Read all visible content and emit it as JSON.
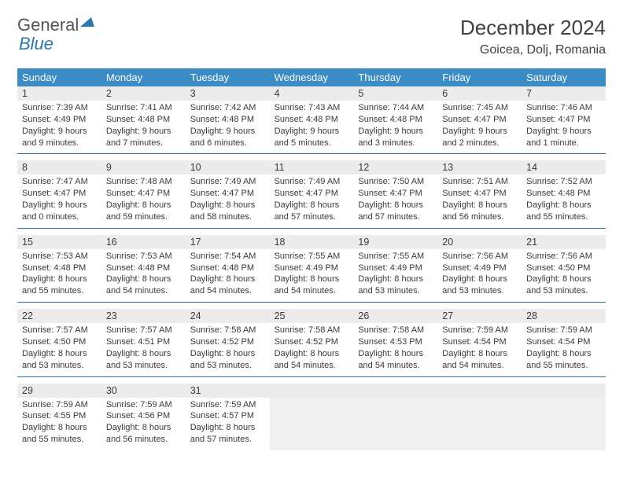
{
  "logo": {
    "word1": "General",
    "word2": "Blue"
  },
  "title": "December 2024",
  "location": "Goicea, Dolj, Romania",
  "day_names": [
    "Sunday",
    "Monday",
    "Tuesday",
    "Wednesday",
    "Thursday",
    "Friday",
    "Saturday"
  ],
  "labels": {
    "sunrise": "Sunrise:",
    "sunset": "Sunset:",
    "daylight": "Daylight:"
  },
  "colors": {
    "header_bg": "#3b8bc4",
    "header_fg": "#ffffff",
    "daynum_bg": "#ececec",
    "rule": "#2b6da3",
    "text": "#3a3a3a",
    "logo_blue": "#2a7ab0"
  },
  "days": [
    {
      "n": 1,
      "sunrise": "7:39 AM",
      "sunset": "4:49 PM",
      "day_h": 9,
      "day_m": 9
    },
    {
      "n": 2,
      "sunrise": "7:41 AM",
      "sunset": "4:48 PM",
      "day_h": 9,
      "day_m": 7
    },
    {
      "n": 3,
      "sunrise": "7:42 AM",
      "sunset": "4:48 PM",
      "day_h": 9,
      "day_m": 6
    },
    {
      "n": 4,
      "sunrise": "7:43 AM",
      "sunset": "4:48 PM",
      "day_h": 9,
      "day_m": 5
    },
    {
      "n": 5,
      "sunrise": "7:44 AM",
      "sunset": "4:48 PM",
      "day_h": 9,
      "day_m": 3
    },
    {
      "n": 6,
      "sunrise": "7:45 AM",
      "sunset": "4:47 PM",
      "day_h": 9,
      "day_m": 2
    },
    {
      "n": 7,
      "sunrise": "7:46 AM",
      "sunset": "4:47 PM",
      "day_h": 9,
      "day_m": 1
    },
    {
      "n": 8,
      "sunrise": "7:47 AM",
      "sunset": "4:47 PM",
      "day_h": 9,
      "day_m": 0
    },
    {
      "n": 9,
      "sunrise": "7:48 AM",
      "sunset": "4:47 PM",
      "day_h": 8,
      "day_m": 59
    },
    {
      "n": 10,
      "sunrise": "7:49 AM",
      "sunset": "4:47 PM",
      "day_h": 8,
      "day_m": 58
    },
    {
      "n": 11,
      "sunrise": "7:49 AM",
      "sunset": "4:47 PM",
      "day_h": 8,
      "day_m": 57
    },
    {
      "n": 12,
      "sunrise": "7:50 AM",
      "sunset": "4:47 PM",
      "day_h": 8,
      "day_m": 57
    },
    {
      "n": 13,
      "sunrise": "7:51 AM",
      "sunset": "4:47 PM",
      "day_h": 8,
      "day_m": 56
    },
    {
      "n": 14,
      "sunrise": "7:52 AM",
      "sunset": "4:48 PM",
      "day_h": 8,
      "day_m": 55
    },
    {
      "n": 15,
      "sunrise": "7:53 AM",
      "sunset": "4:48 PM",
      "day_h": 8,
      "day_m": 55
    },
    {
      "n": 16,
      "sunrise": "7:53 AM",
      "sunset": "4:48 PM",
      "day_h": 8,
      "day_m": 54
    },
    {
      "n": 17,
      "sunrise": "7:54 AM",
      "sunset": "4:48 PM",
      "day_h": 8,
      "day_m": 54
    },
    {
      "n": 18,
      "sunrise": "7:55 AM",
      "sunset": "4:49 PM",
      "day_h": 8,
      "day_m": 54
    },
    {
      "n": 19,
      "sunrise": "7:55 AM",
      "sunset": "4:49 PM",
      "day_h": 8,
      "day_m": 53
    },
    {
      "n": 20,
      "sunrise": "7:56 AM",
      "sunset": "4:49 PM",
      "day_h": 8,
      "day_m": 53
    },
    {
      "n": 21,
      "sunrise": "7:56 AM",
      "sunset": "4:50 PM",
      "day_h": 8,
      "day_m": 53
    },
    {
      "n": 22,
      "sunrise": "7:57 AM",
      "sunset": "4:50 PM",
      "day_h": 8,
      "day_m": 53
    },
    {
      "n": 23,
      "sunrise": "7:57 AM",
      "sunset": "4:51 PM",
      "day_h": 8,
      "day_m": 53
    },
    {
      "n": 24,
      "sunrise": "7:58 AM",
      "sunset": "4:52 PM",
      "day_h": 8,
      "day_m": 53
    },
    {
      "n": 25,
      "sunrise": "7:58 AM",
      "sunset": "4:52 PM",
      "day_h": 8,
      "day_m": 54
    },
    {
      "n": 26,
      "sunrise": "7:58 AM",
      "sunset": "4:53 PM",
      "day_h": 8,
      "day_m": 54
    },
    {
      "n": 27,
      "sunrise": "7:59 AM",
      "sunset": "4:54 PM",
      "day_h": 8,
      "day_m": 54
    },
    {
      "n": 28,
      "sunrise": "7:59 AM",
      "sunset": "4:54 PM",
      "day_h": 8,
      "day_m": 55
    },
    {
      "n": 29,
      "sunrise": "7:59 AM",
      "sunset": "4:55 PM",
      "day_h": 8,
      "day_m": 55
    },
    {
      "n": 30,
      "sunrise": "7:59 AM",
      "sunset": "4:56 PM",
      "day_h": 8,
      "day_m": 56
    },
    {
      "n": 31,
      "sunrise": "7:59 AM",
      "sunset": "4:57 PM",
      "day_h": 8,
      "day_m": 57
    }
  ]
}
